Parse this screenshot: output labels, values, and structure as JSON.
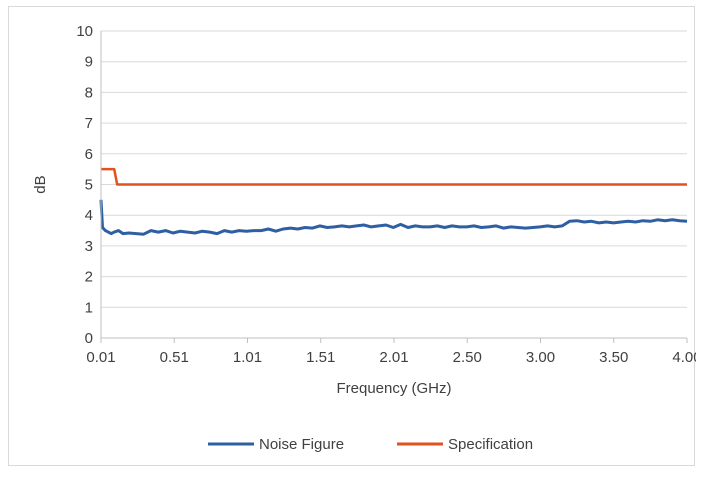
{
  "chart_data": {
    "type": "line",
    "title": "",
    "xlabel": "Frequency (GHz)",
    "ylabel": "dB",
    "xlim": [
      0.01,
      4.0
    ],
    "ylim": [
      0,
      10
    ],
    "x_tick_labels": [
      "0.01",
      "0.51",
      "1.01",
      "1.51",
      "2.01",
      "2.50",
      "3.00",
      "3.50",
      "4.00"
    ],
    "y_ticks": [
      0,
      1,
      2,
      3,
      4,
      5,
      6,
      7,
      8,
      9,
      10
    ],
    "grid": "horizontal",
    "legend_position": "bottom",
    "series": [
      {
        "name": "Noise Figure",
        "color": "#2e5fa3",
        "x": [
          0.01,
          0.02,
          0.04,
          0.06,
          0.08,
          0.1,
          0.13,
          0.16,
          0.2,
          0.25,
          0.3,
          0.35,
          0.4,
          0.45,
          0.5,
          0.55,
          0.6,
          0.65,
          0.7,
          0.75,
          0.8,
          0.85,
          0.9,
          0.95,
          1.0,
          1.05,
          1.1,
          1.15,
          1.2,
          1.25,
          1.3,
          1.35,
          1.4,
          1.45,
          1.5,
          1.55,
          1.6,
          1.65,
          1.7,
          1.75,
          1.8,
          1.85,
          1.9,
          1.95,
          2.0,
          2.05,
          2.1,
          2.15,
          2.2,
          2.25,
          2.3,
          2.35,
          2.4,
          2.45,
          2.5,
          2.55,
          2.6,
          2.65,
          2.7,
          2.75,
          2.8,
          2.85,
          2.9,
          2.95,
          3.0,
          3.05,
          3.1,
          3.15,
          3.2,
          3.25,
          3.3,
          3.35,
          3.4,
          3.45,
          3.5,
          3.55,
          3.6,
          3.65,
          3.7,
          3.75,
          3.8,
          3.85,
          3.9,
          3.95,
          4.0
        ],
        "values": [
          4.5,
          3.6,
          3.5,
          3.45,
          3.4,
          3.45,
          3.5,
          3.4,
          3.42,
          3.4,
          3.38,
          3.5,
          3.45,
          3.5,
          3.42,
          3.48,
          3.45,
          3.42,
          3.48,
          3.45,
          3.4,
          3.5,
          3.45,
          3.5,
          3.48,
          3.5,
          3.5,
          3.55,
          3.48,
          3.55,
          3.58,
          3.55,
          3.6,
          3.58,
          3.65,
          3.6,
          3.62,
          3.65,
          3.62,
          3.65,
          3.68,
          3.62,
          3.65,
          3.68,
          3.6,
          3.7,
          3.6,
          3.65,
          3.62,
          3.62,
          3.65,
          3.6,
          3.65,
          3.62,
          3.62,
          3.65,
          3.6,
          3.62,
          3.65,
          3.58,
          3.62,
          3.6,
          3.58,
          3.6,
          3.62,
          3.65,
          3.62,
          3.65,
          3.8,
          3.82,
          3.78,
          3.8,
          3.75,
          3.78,
          3.75,
          3.78,
          3.8,
          3.78,
          3.82,
          3.8,
          3.85,
          3.82,
          3.85,
          3.82,
          3.8
        ]
      },
      {
        "name": "Specification",
        "color": "#e0531e",
        "x": [
          0.01,
          0.1,
          0.12,
          4.0
        ],
        "values": [
          5.5,
          5.5,
          5.0,
          5.0
        ]
      }
    ]
  }
}
